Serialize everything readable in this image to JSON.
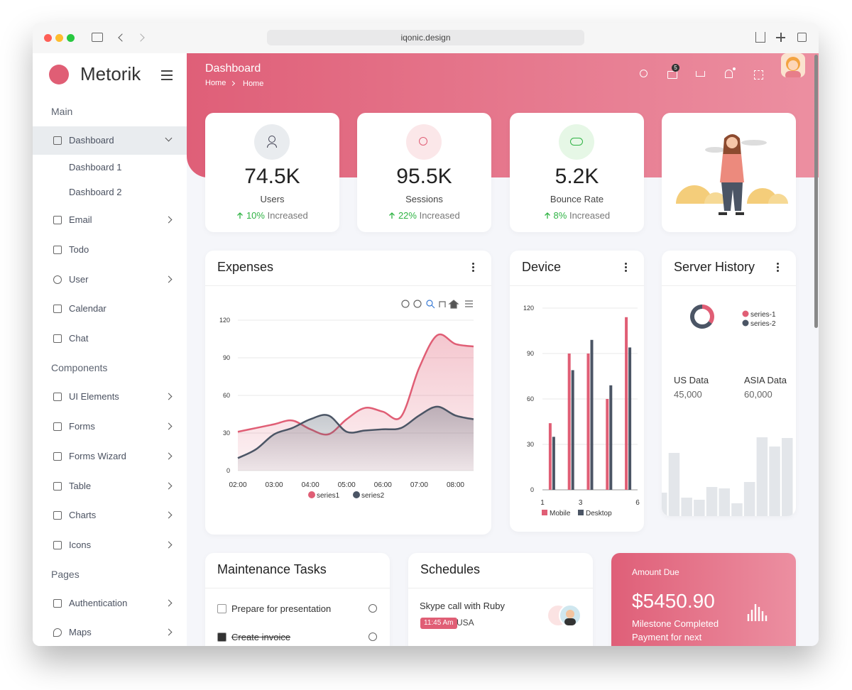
{
  "browser": {
    "url": "iqonic.design"
  },
  "sidebar": {
    "brand": "Metorik",
    "sections": [
      {
        "title": "Main",
        "items": [
          {
            "label": "Dashboard",
            "children": [
              "Dashboard 1",
              "Dashboard 2"
            ]
          },
          {
            "label": "Email"
          },
          {
            "label": "Todo"
          },
          {
            "label": "User"
          },
          {
            "label": "Calendar"
          },
          {
            "label": "Chat"
          }
        ]
      },
      {
        "title": "Components",
        "items": [
          {
            "label": "UI Elements"
          },
          {
            "label": "Forms"
          },
          {
            "label": "Forms Wizard"
          },
          {
            "label": "Table"
          },
          {
            "label": "Charts"
          },
          {
            "label": "Icons"
          }
        ]
      },
      {
        "title": "Pages",
        "items": [
          {
            "label": "Authentication"
          },
          {
            "label": "Maps"
          }
        ]
      }
    ]
  },
  "header": {
    "title": "Dashboard",
    "breadcrumb": [
      "Home",
      "Home"
    ],
    "mail_badge": "5"
  },
  "stats": [
    {
      "value": "74.5K",
      "label": "Users",
      "change": "10%",
      "trend": "Increased"
    },
    {
      "value": "95.5K",
      "label": "Sessions",
      "change": "22%",
      "trend": "Increased"
    },
    {
      "value": "5.2K",
      "label": "Bounce Rate",
      "change": "8%",
      "trend": "Increased"
    }
  ],
  "expenses": {
    "type": "area",
    "title": "Expenses",
    "categories": [
      "02:00",
      null,
      "03:00",
      null,
      "04:00",
      null,
      "05:00",
      null,
      "06:00",
      null,
      "07:00",
      null,
      "08:00",
      null
    ],
    "series": [
      {
        "name": "series1",
        "color": "#e05e75",
        "values": [
          31,
          34,
          37,
          40,
          33,
          29,
          41,
          50,
          47,
          43,
          82,
          108,
          101,
          99
        ]
      },
      {
        "name": "series2",
        "color": "#4b5565",
        "values": [
          10,
          17,
          29,
          34,
          41,
          44,
          31,
          32,
          33,
          34,
          44,
          51,
          44,
          41
        ]
      }
    ],
    "ylim": [
      0,
      120
    ],
    "yticks": [
      0,
      30,
      60,
      90,
      120
    ],
    "grid": true
  },
  "device": {
    "type": "bar",
    "title": "Device",
    "x": [
      1.5,
      2.5,
      3.5,
      4.5,
      5.5
    ],
    "xlim": [
      1,
      6
    ],
    "xticks": [
      1,
      3,
      6
    ],
    "series": [
      {
        "name": "Mobile",
        "color": "#e05e75",
        "values": [
          44,
          90,
          90,
          60,
          114
        ]
      },
      {
        "name": "Desktop",
        "color": "#4b5565",
        "values": [
          35,
          79,
          99,
          69,
          94
        ]
      }
    ],
    "ylim": [
      0,
      120
    ],
    "yticks": [
      0,
      30,
      60,
      90,
      120
    ],
    "grid": true
  },
  "server_history": {
    "title": "Server History",
    "donut": {
      "type": "donut",
      "series": [
        {
          "name": "series-1",
          "color": "#e05e75",
          "value": 35
        },
        {
          "name": "series-2",
          "color": "#4b5565",
          "value": 65
        }
      ]
    },
    "stats": [
      {
        "label": "US Data",
        "value": "45,000"
      },
      {
        "label": "ASIA Data",
        "value": "60,000"
      }
    ],
    "bars": {
      "type": "bar",
      "color": "#e3e6ea",
      "values": [
        33,
        89,
        26,
        23,
        41,
        39,
        18,
        48,
        111,
        98,
        110
      ]
    }
  },
  "maintenance": {
    "title": "Maintenance Tasks",
    "tasks": [
      {
        "label": "Prepare for presentation",
        "done": false
      },
      {
        "label": "Create invoice",
        "done": true
      }
    ]
  },
  "schedules": {
    "title": "Schedules",
    "items": [
      {
        "title": "Skype call with Ruby",
        "time": "11:45 Am",
        "location": "USA"
      }
    ]
  },
  "amount_due": {
    "label": "Amount Due",
    "value": "$5450.90",
    "lines": [
      "Milestone Completed",
      "Payment for next"
    ]
  }
}
